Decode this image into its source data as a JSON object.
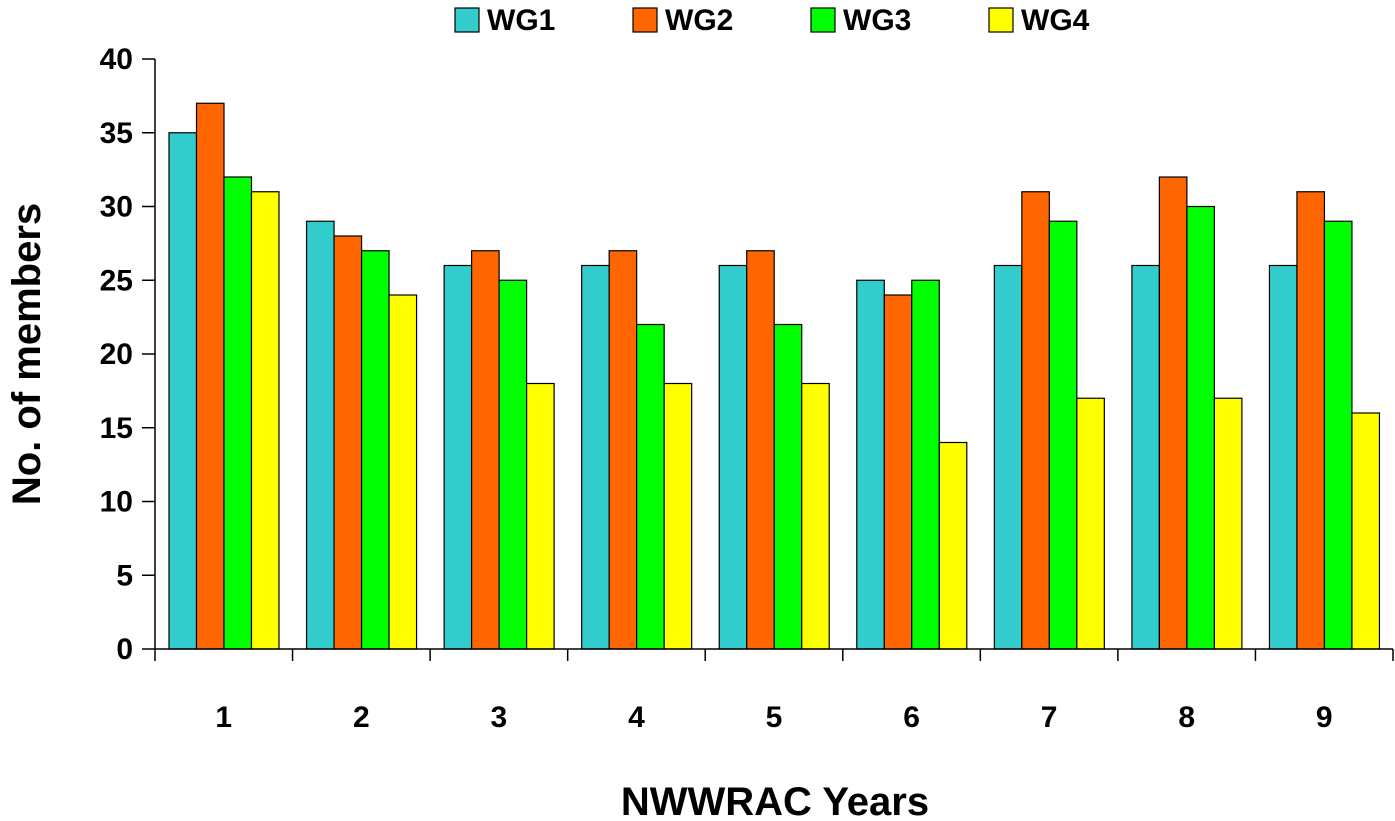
{
  "chart_data": {
    "type": "bar",
    "xlabel": "NWWRAC Years",
    "ylabel": "No. of members",
    "ylim": [
      0,
      40
    ],
    "yticks": [
      "0",
      "5",
      "10",
      "15",
      "20",
      "25",
      "30",
      "35",
      "40"
    ],
    "categories": [
      "1",
      "2",
      "3",
      "4",
      "5",
      "6",
      "7",
      "8",
      "9"
    ],
    "legend_position": "top",
    "grid": false,
    "series": [
      {
        "name": "WG1",
        "color": "#33CCCC",
        "values": [
          35,
          29,
          26,
          26,
          26,
          25,
          26,
          26,
          26
        ]
      },
      {
        "name": "WG2",
        "color": "#FF6600",
        "values": [
          37,
          28,
          27,
          27,
          27,
          24,
          31,
          32,
          31
        ]
      },
      {
        "name": "WG3",
        "color": "#00FF00",
        "values": [
          32,
          27,
          25,
          22,
          22,
          25,
          29,
          30,
          29
        ]
      },
      {
        "name": "WG4",
        "color": "#FFFF00",
        "values": [
          31,
          24,
          18,
          18,
          18,
          14,
          17,
          17,
          16
        ]
      }
    ]
  }
}
